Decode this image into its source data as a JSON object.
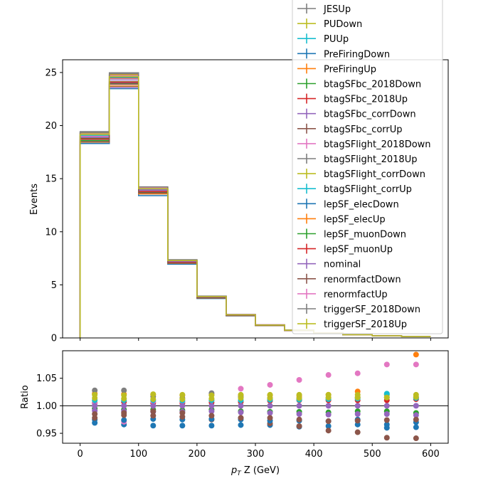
{
  "chart_data": [
    {
      "type": "line",
      "panel": "main",
      "ylabel": "Events",
      "xlim": [
        -30,
        630
      ],
      "ylim": [
        0,
        26.2
      ],
      "x_ticks": [
        0,
        100,
        200,
        300,
        400,
        500,
        600
      ],
      "y_ticks": [
        0,
        5,
        10,
        15,
        20,
        25
      ],
      "bin_edges": [
        0,
        50,
        100,
        150,
        200,
        250,
        300,
        350,
        400,
        450,
        500,
        550,
        600
      ],
      "nominal": [
        18.9,
        24.3,
        13.9,
        7.2,
        3.85,
        2.15,
        1.2,
        0.72,
        0.45,
        0.3,
        0.2,
        0.12
      ],
      "legend_location": "top-right",
      "series": [
        {
          "name": "JESUp",
          "color": "#7f7f7f"
        },
        {
          "name": "PUDown",
          "color": "#bcbd22"
        },
        {
          "name": "PUUp",
          "color": "#17becf"
        },
        {
          "name": "PreFiringDown",
          "color": "#1f77b4"
        },
        {
          "name": "PreFiringUp",
          "color": "#ff7f0e"
        },
        {
          "name": "btagSFbc_2018Down",
          "color": "#2ca02c"
        },
        {
          "name": "btagSFbc_2018Up",
          "color": "#d62728"
        },
        {
          "name": "btagSFbc_corrDown",
          "color": "#9467bd"
        },
        {
          "name": "btagSFbc_corrUp",
          "color": "#8c564b"
        },
        {
          "name": "btagSFlight_2018Down",
          "color": "#e377c2"
        },
        {
          "name": "btagSFlight_2018Up",
          "color": "#7f7f7f"
        },
        {
          "name": "btagSFlight_corrDown",
          "color": "#bcbd22"
        },
        {
          "name": "btagSFlight_corrUp",
          "color": "#17becf"
        },
        {
          "name": "lepSF_elecDown",
          "color": "#1f77b4"
        },
        {
          "name": "lepSF_elecUp",
          "color": "#ff7f0e"
        },
        {
          "name": "lepSF_muonDown",
          "color": "#2ca02c"
        },
        {
          "name": "lepSF_muonUp",
          "color": "#d62728"
        },
        {
          "name": "nominal",
          "color": "#9467bd"
        },
        {
          "name": "renormfactDown",
          "color": "#8c564b"
        },
        {
          "name": "renormfactUp",
          "color": "#e377c2"
        },
        {
          "name": "triggerSF_2018Down",
          "color": "#7f7f7f"
        },
        {
          "name": "triggerSF_2018Up",
          "color": "#bcbd22"
        }
      ]
    },
    {
      "type": "scatter",
      "panel": "ratio",
      "xlabel": "p_T Z (GeV)",
      "ylabel": "Ratio",
      "xlim": [
        -30,
        630
      ],
      "ylim": [
        0.932,
        1.1
      ],
      "x_ticks": [
        0,
        100,
        200,
        300,
        400,
        500,
        600
      ],
      "y_ticks": [
        0.95,
        1.0,
        1.05
      ],
      "y_tick_labels": [
        "0.95",
        "1.00",
        "1.05"
      ],
      "reference_line": 1.0,
      "x": [
        25,
        75,
        125,
        175,
        225,
        275,
        325,
        375,
        425,
        475,
        525,
        575
      ],
      "series": [
        {
          "name": "PreFiringDown",
          "color": "#1f77b4",
          "values": [
            0.969,
            0.966,
            0.964,
            0.964,
            0.964,
            0.965,
            0.965,
            0.962,
            0.963,
            0.966,
            0.966,
            0.961
          ]
        },
        {
          "name": "PreFiringUp",
          "color": "#ff7f0e",
          "values": [
            1.022,
            1.021,
            1.02,
            1.019,
            1.02,
            1.019,
            1.019,
            1.018,
            1.02,
            1.026,
            1.02,
            1.093
          ]
        },
        {
          "name": "btagSFbc_2018Down",
          "color": "#2ca02c",
          "values": [
            0.995,
            0.993,
            0.993,
            0.992,
            0.993,
            0.99,
            0.989,
            0.989,
            0.988,
            0.99,
            0.99,
            0.987
          ]
        },
        {
          "name": "btagSFbc_2018Up",
          "color": "#d62728",
          "values": [
            1.005,
            1.007,
            1.005,
            1.005,
            1.006,
            1.007,
            1.009,
            1.01,
            1.01,
            1.01,
            1.01,
            1.012
          ]
        },
        {
          "name": "btagSFbc_corrDown",
          "color": "#9467bd",
          "values": [
            0.991,
            0.99,
            0.989,
            0.989,
            0.99,
            0.988,
            0.987,
            0.985,
            0.984,
            0.985,
            0.985,
            0.983
          ]
        },
        {
          "name": "btagSFbc_corrUp",
          "color": "#8c564b",
          "values": [
            0.985,
            0.987,
            0.99,
            0.987,
            0.975,
            0.978,
            0.968,
            0.963,
            0.955,
            0.952,
            0.942,
            0.941
          ]
        },
        {
          "name": "btagSFlight_2018Down",
          "color": "#e377c2",
          "values": [
            1.004,
            0.971,
            1.008,
            1.008,
            1.01,
            1.031,
            1.038,
            1.047,
            1.056,
            1.059,
            1.075,
            1.075
          ]
        },
        {
          "name": "btagSFlight_2018Up",
          "color": "#7f7f7f",
          "values": [
            1.028,
            1.028,
            1.017,
            1.014,
            1.023,
            1.016,
            1.014,
            1.014,
            1.014,
            1.015,
            1.015,
            1.015
          ]
        },
        {
          "name": "btagSFlight_corrDown",
          "color": "#bcbd22",
          "values": [
            1.02,
            1.019,
            1.021,
            1.02,
            1.019,
            1.02,
            1.02,
            1.02,
            1.02,
            1.02,
            1.02,
            1.02
          ]
        },
        {
          "name": "btagSFlight_corrUp",
          "color": "#17becf",
          "values": [
            1.01,
            1.01,
            1.01,
            1.009,
            1.01,
            1.01,
            1.011,
            1.011,
            1.012,
            1.013,
            1.022,
            1.014
          ]
        },
        {
          "name": "lepSF_elecDown",
          "color": "#1f77b4",
          "values": [
            0.975,
            0.974,
            0.976,
            0.975,
            0.976,
            0.975,
            0.973,
            0.973,
            0.972,
            0.975,
            0.96,
            0.97
          ]
        },
        {
          "name": "renormfactDown",
          "color": "#8c564b",
          "values": [
            0.978,
            0.983,
            0.982,
            0.98,
            0.982,
            0.978,
            0.978,
            0.975,
            0.972,
            0.973,
            0.974,
            0.975
          ]
        },
        {
          "name": "triggerSF_2018Up",
          "color": "#bcbd22",
          "values": [
            1.014,
            1.013,
            1.012,
            1.012,
            1.013,
            1.014,
            1.014,
            1.014,
            1.015,
            1.015,
            1.015,
            1.016
          ]
        },
        {
          "name": "nominal",
          "color": "#9467bd",
          "values": [
            1.0,
            1.0,
            1.0,
            1.0,
            1.0,
            1.0,
            1.0,
            1.0,
            1.0,
            1.0,
            1.0,
            1.0
          ]
        }
      ]
    }
  ]
}
